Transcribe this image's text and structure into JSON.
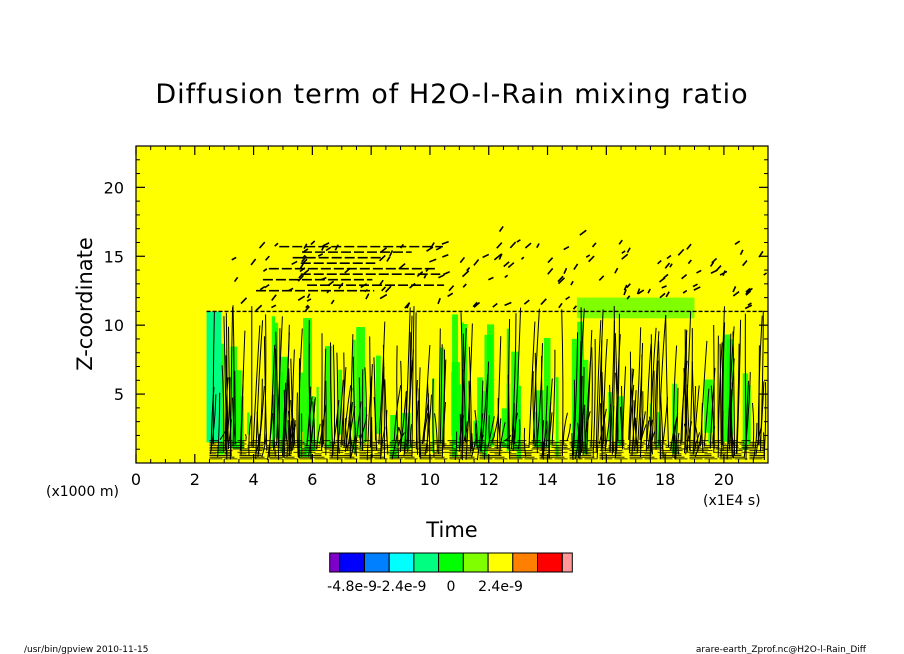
{
  "chart_data": {
    "type": "heatmap",
    "title": "Diffusion term of H2O-l-Rain mixing ratio",
    "xlabel": "Time",
    "ylabel": "Z-coordinate",
    "x_unit": "(x1E4 s)",
    "y_unit": "(x1000 m)",
    "xlim": [
      0,
      21.5
    ],
    "ylim": [
      0,
      23
    ],
    "x_ticks": [
      "0",
      "2",
      "4",
      "6",
      "8",
      "10",
      "12",
      "14",
      "16",
      "18",
      "20"
    ],
    "x_tick_values": [
      0,
      2,
      4,
      6,
      8,
      10,
      12,
      14,
      16,
      18,
      20
    ],
    "y_ticks": [
      "5",
      "10",
      "15",
      "20"
    ],
    "y_tick_values": [
      5,
      10,
      15,
      20
    ],
    "colorbar": {
      "colors": [
        "#7f00c8",
        "#0000ff",
        "#0080ff",
        "#00ffff",
        "#00ff80",
        "#00ff00",
        "#80ff00",
        "#ffff00",
        "#ff8000",
        "#ff0000",
        "#ff9999"
      ],
      "labels": [
        "-4.8e-9",
        "-2.4e-9",
        "0",
        "2.4e-9"
      ],
      "label_positions": [
        1.5,
        3.5,
        5.5,
        7.5
      ]
    },
    "background_color": "#ffff00",
    "active_region": {
      "x_start": 2.3,
      "x_end": 21.5,
      "z_top": 11,
      "cloud_top_z": 16
    }
  },
  "footer": {
    "left": "/usr/bin/gpview  2010-11-15",
    "right": "arare-earth_Zprof.nc@H2O-l-Rain_Diff"
  }
}
